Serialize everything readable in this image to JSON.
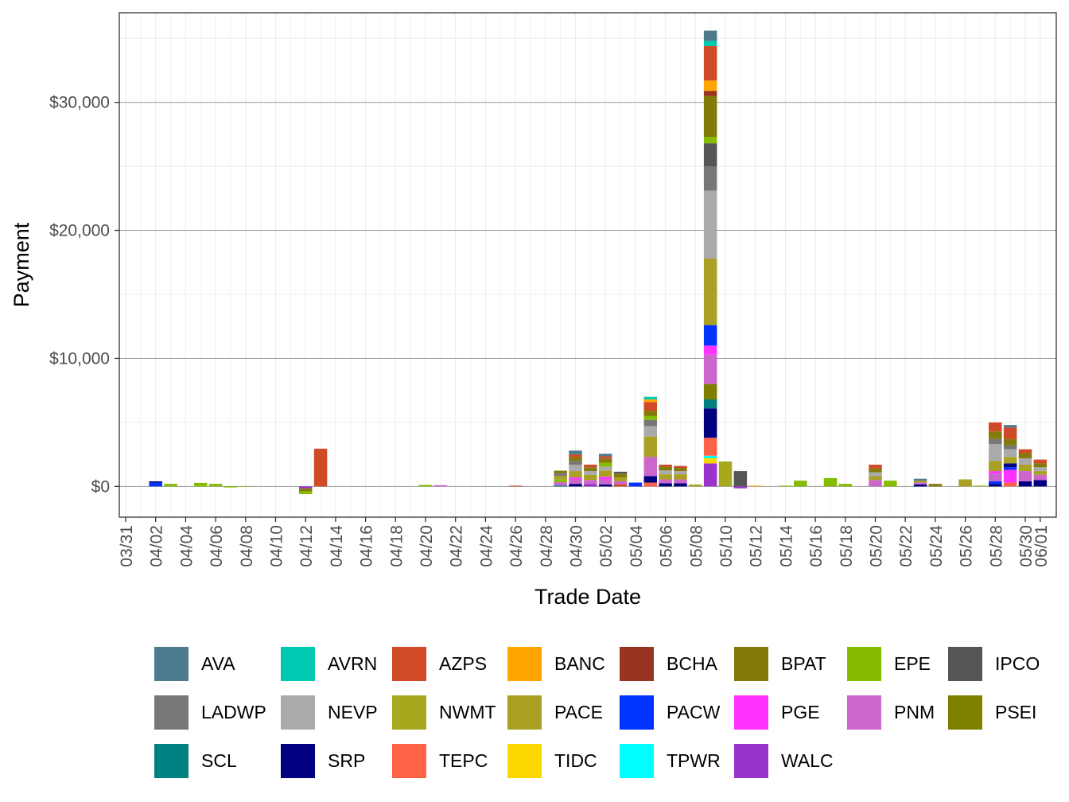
{
  "chart_data": {
    "type": "bar",
    "stacked": true,
    "xlabel": "Trade Date",
    "ylabel": "Payment",
    "ylim": [
      -2400,
      37000
    ],
    "y_ticks": [
      0,
      10000,
      20000,
      30000
    ],
    "y_tick_labels": [
      "$0",
      "$10,000",
      "$20,000",
      "$30,000"
    ],
    "x_tick_labels": [
      "03/31",
      "04/02",
      "04/04",
      "04/06",
      "04/08",
      "04/10",
      "04/12",
      "04/14",
      "04/16",
      "04/18",
      "04/20",
      "04/22",
      "04/24",
      "04/26",
      "04/28",
      "04/30",
      "05/02",
      "05/04",
      "05/06",
      "05/08",
      "05/10",
      "05/12",
      "05/14",
      "05/16",
      "05/18",
      "05/20",
      "05/22",
      "05/24",
      "05/26",
      "05/28",
      "05/30",
      "06/01"
    ],
    "grid": true,
    "legend_position": "bottom",
    "legend": [
      {
        "name": "AVA",
        "color": "#4E7A8E"
      },
      {
        "name": "AVRN",
        "color": "#00C9B1"
      },
      {
        "name": "AZPS",
        "color": "#D04A27"
      },
      {
        "name": "BANC",
        "color": "#FFA500"
      },
      {
        "name": "BCHA",
        "color": "#9A3422"
      },
      {
        "name": "BPAT",
        "color": "#837A0A"
      },
      {
        "name": "EPE",
        "color": "#86BC00"
      },
      {
        "name": "IPCO",
        "color": "#555555"
      },
      {
        "name": "LADWP",
        "color": "#777777"
      },
      {
        "name": "NEVP",
        "color": "#AAAAAA"
      },
      {
        "name": "NWMT",
        "color": "#A8A81E"
      },
      {
        "name": "PACE",
        "color": "#AAA023"
      },
      {
        "name": "PACW",
        "color": "#0033FF"
      },
      {
        "name": "PGE",
        "color": "#FF33FF"
      },
      {
        "name": "PNM",
        "color": "#CC66CC"
      },
      {
        "name": "PSEI",
        "color": "#808000"
      },
      {
        "name": "SCL",
        "color": "#008080"
      },
      {
        "name": "SRP",
        "color": "#000080"
      },
      {
        "name": "TEPC",
        "color": "#FF6347"
      },
      {
        "name": "TIDC",
        "color": "#FFD700"
      },
      {
        "name": "TPWR",
        "color": "#00FFFF"
      },
      {
        "name": "WALC",
        "color": "#9933CC"
      }
    ],
    "bars": [
      {
        "date": "04/02",
        "segments": [
          {
            "name": "PACW",
            "value": 300
          },
          {
            "name": "SRP",
            "value": 100
          }
        ]
      },
      {
        "date": "04/03",
        "segments": [
          {
            "name": "EPE",
            "value": 200
          }
        ]
      },
      {
        "date": "04/05",
        "segments": [
          {
            "name": "EPE",
            "value": 280
          }
        ]
      },
      {
        "date": "04/06",
        "segments": [
          {
            "name": "EPE",
            "value": 200
          }
        ]
      },
      {
        "date": "04/07",
        "segments": [
          {
            "name": "EPE",
            "value": -80
          }
        ]
      },
      {
        "date": "04/08",
        "segments": [
          {
            "name": "EPE",
            "value": -30
          }
        ]
      },
      {
        "date": "04/12",
        "segments": [
          {
            "name": "WALC",
            "value": -150
          },
          {
            "name": "BPAT",
            "value": -250
          },
          {
            "name": "EPE",
            "value": -200
          }
        ]
      },
      {
        "date": "04/13",
        "segments": [
          {
            "name": "AZPS",
            "value": 2950
          }
        ]
      },
      {
        "date": "04/20",
        "segments": [
          {
            "name": "EPE",
            "value": 120
          }
        ]
      },
      {
        "date": "04/21",
        "segments": [
          {
            "name": "PNM",
            "value": 100
          }
        ]
      },
      {
        "date": "04/26",
        "segments": [
          {
            "name": "AZPS",
            "value": 60
          }
        ]
      },
      {
        "date": "04/29",
        "segments": [
          {
            "name": "SCL",
            "value": 80
          },
          {
            "name": "PNM",
            "value": 250
          },
          {
            "name": "EPE",
            "value": 200
          },
          {
            "name": "PACE",
            "value": 300
          },
          {
            "name": "LADWP",
            "value": 200
          },
          {
            "name": "BPAT",
            "value": 200
          }
        ]
      },
      {
        "date": "04/30",
        "segments": [
          {
            "name": "SRP",
            "value": 200
          },
          {
            "name": "PNM",
            "value": 350
          },
          {
            "name": "PGE",
            "value": 150
          },
          {
            "name": "PACE",
            "value": 500
          },
          {
            "name": "NEVP",
            "value": 500
          },
          {
            "name": "LADWP",
            "value": 300
          },
          {
            "name": "BPAT",
            "value": 300
          },
          {
            "name": "AZPS",
            "value": 200
          },
          {
            "name": "AVA",
            "value": 300
          }
        ]
      },
      {
        "date": "05/01",
        "segments": [
          {
            "name": "WALC",
            "value": 200
          },
          {
            "name": "PNM",
            "value": 300
          },
          {
            "name": "PACE",
            "value": 400
          },
          {
            "name": "NEVP",
            "value": 300
          },
          {
            "name": "BPAT",
            "value": 300
          },
          {
            "name": "AZPS",
            "value": 200
          }
        ]
      },
      {
        "date": "05/02",
        "segments": [
          {
            "name": "SRP",
            "value": 150
          },
          {
            "name": "PNM",
            "value": 400
          },
          {
            "name": "PGE",
            "value": 200
          },
          {
            "name": "PACE",
            "value": 500
          },
          {
            "name": "NEVP",
            "value": 300
          },
          {
            "name": "EPE",
            "value": 300
          },
          {
            "name": "BPAT",
            "value": 300
          },
          {
            "name": "AZPS",
            "value": 200
          },
          {
            "name": "AVA",
            "value": 200
          }
        ]
      },
      {
        "date": "05/03",
        "segments": [
          {
            "name": "AZPS",
            "value": 150
          },
          {
            "name": "PNM",
            "value": 250
          },
          {
            "name": "PACE",
            "value": 300
          },
          {
            "name": "BPAT",
            "value": 300
          },
          {
            "name": "IPCO",
            "value": 150
          }
        ]
      },
      {
        "date": "05/04",
        "segments": [
          {
            "name": "PACW",
            "value": 300
          }
        ]
      },
      {
        "date": "05/05",
        "segments": [
          {
            "name": "TEPC",
            "value": 300
          },
          {
            "name": "SRP",
            "value": 500
          },
          {
            "name": "PNM",
            "value": 1500
          },
          {
            "name": "PACE",
            "value": 1600
          },
          {
            "name": "NEVP",
            "value": 800
          },
          {
            "name": "LADWP",
            "value": 500
          },
          {
            "name": "EPE",
            "value": 300
          },
          {
            "name": "BPAT",
            "value": 400
          },
          {
            "name": "AZPS",
            "value": 700
          },
          {
            "name": "BANC",
            "value": 200
          },
          {
            "name": "AVRN",
            "value": 200
          }
        ]
      },
      {
        "date": "05/06",
        "segments": [
          {
            "name": "SRP",
            "value": 250
          },
          {
            "name": "PNM",
            "value": 300
          },
          {
            "name": "PACE",
            "value": 400
          },
          {
            "name": "NEVP",
            "value": 300
          },
          {
            "name": "BPAT",
            "value": 300
          },
          {
            "name": "AZPS",
            "value": 150
          }
        ]
      },
      {
        "date": "05/07",
        "segments": [
          {
            "name": "SRP",
            "value": 250
          },
          {
            "name": "PNM",
            "value": 300
          },
          {
            "name": "PACE",
            "value": 400
          },
          {
            "name": "NEVP",
            "value": 250
          },
          {
            "name": "BPAT",
            "value": 250
          },
          {
            "name": "AZPS",
            "value": 150
          }
        ]
      },
      {
        "date": "05/08",
        "segments": [
          {
            "name": "NWMT",
            "value": 150
          }
        ]
      },
      {
        "date": "05/09",
        "segments": [
          {
            "name": "WALC",
            "value": 1800
          },
          {
            "name": "TIDC",
            "value": 400
          },
          {
            "name": "TPWR",
            "value": 200
          },
          {
            "name": "TEPC",
            "value": 1400
          },
          {
            "name": "SRP",
            "value": 2300
          },
          {
            "name": "SCL",
            "value": 700
          },
          {
            "name": "PSEI",
            "value": 1200
          },
          {
            "name": "PNM",
            "value": 2300
          },
          {
            "name": "PGE",
            "value": 700
          },
          {
            "name": "PACW",
            "value": 1600
          },
          {
            "name": "PACE",
            "value": 5200
          },
          {
            "name": "NEVP",
            "value": 5300
          },
          {
            "name": "LADWP",
            "value": 1900
          },
          {
            "name": "IPCO",
            "value": 1800
          },
          {
            "name": "EPE",
            "value": 500
          },
          {
            "name": "BPAT",
            "value": 3200
          },
          {
            "name": "BCHA",
            "value": 400
          },
          {
            "name": "BANC",
            "value": 800
          },
          {
            "name": "AZPS",
            "value": 2700
          },
          {
            "name": "AVRN",
            "value": 400
          },
          {
            "name": "AVA",
            "value": 800
          }
        ]
      },
      {
        "date": "05/10",
        "segments": [
          {
            "name": "NWMT",
            "value": 1950
          }
        ]
      },
      {
        "date": "05/11",
        "segments": [
          {
            "name": "IPCO",
            "value": 1200
          },
          {
            "name": "WALC",
            "value": -150
          }
        ]
      },
      {
        "date": "05/12",
        "segments": [
          {
            "name": "BANC",
            "value": 60
          }
        ]
      },
      {
        "date": "05/14",
        "segments": [
          {
            "name": "EPE",
            "value": 60
          }
        ]
      },
      {
        "date": "05/15",
        "segments": [
          {
            "name": "EPE",
            "value": 450
          }
        ]
      },
      {
        "date": "05/17",
        "segments": [
          {
            "name": "EPE",
            "value": 650
          }
        ]
      },
      {
        "date": "05/18",
        "segments": [
          {
            "name": "EPE",
            "value": 200
          }
        ]
      },
      {
        "date": "05/20",
        "segments": [
          {
            "name": "PNM",
            "value": 500
          },
          {
            "name": "PACE",
            "value": 300
          },
          {
            "name": "NEVP",
            "value": 300
          },
          {
            "name": "BPAT",
            "value": 300
          },
          {
            "name": "AZPS",
            "value": 300
          }
        ]
      },
      {
        "date": "05/21",
        "segments": [
          {
            "name": "EPE",
            "value": 450
          }
        ]
      },
      {
        "date": "05/23",
        "segments": [
          {
            "name": "SRP",
            "value": 150
          },
          {
            "name": "PNM",
            "value": 150
          },
          {
            "name": "PACE",
            "value": 150
          },
          {
            "name": "AVA",
            "value": 150
          }
        ]
      },
      {
        "date": "05/24",
        "segments": [
          {
            "name": "BPAT",
            "value": 200
          }
        ]
      },
      {
        "date": "05/26",
        "segments": [
          {
            "name": "PACE",
            "value": 550
          }
        ]
      },
      {
        "date": "05/27",
        "segments": [
          {
            "name": "EPE",
            "value": 60
          }
        ]
      },
      {
        "date": "05/28",
        "segments": [
          {
            "name": "SRP",
            "value": 200
          },
          {
            "name": "PACW",
            "value": 200
          },
          {
            "name": "PNM",
            "value": 600
          },
          {
            "name": "PGE",
            "value": 200
          },
          {
            "name": "PACE",
            "value": 800
          },
          {
            "name": "NEVP",
            "value": 1300
          },
          {
            "name": "LADWP",
            "value": 400
          },
          {
            "name": "BPAT",
            "value": 600
          },
          {
            "name": "AZPS",
            "value": 700
          }
        ]
      },
      {
        "date": "05/29",
        "segments": [
          {
            "name": "TEPC",
            "value": 300
          },
          {
            "name": "PGE",
            "value": 1000
          },
          {
            "name": "PACW",
            "value": 200
          },
          {
            "name": "SRP",
            "value": 300
          },
          {
            "name": "PACE",
            "value": 500
          },
          {
            "name": "NEVP",
            "value": 600
          },
          {
            "name": "LADWP",
            "value": 300
          },
          {
            "name": "BPAT",
            "value": 500
          },
          {
            "name": "AZPS",
            "value": 900
          },
          {
            "name": "AVA",
            "value": 200
          }
        ]
      },
      {
        "date": "05/30",
        "segments": [
          {
            "name": "SRP",
            "value": 400
          },
          {
            "name": "PNM",
            "value": 800
          },
          {
            "name": "PACE",
            "value": 500
          },
          {
            "name": "NEVP",
            "value": 500
          },
          {
            "name": "BPAT",
            "value": 400
          },
          {
            "name": "AZPS",
            "value": 300
          }
        ]
      },
      {
        "date": "05/31",
        "segments": [
          {
            "name": "SRP",
            "value": 500
          },
          {
            "name": "PNM",
            "value": 400
          },
          {
            "name": "PACE",
            "value": 300
          },
          {
            "name": "NEVP",
            "value": 300
          },
          {
            "name": "BPAT",
            "value": 300
          },
          {
            "name": "AZPS",
            "value": 300
          }
        ]
      }
    ]
  }
}
